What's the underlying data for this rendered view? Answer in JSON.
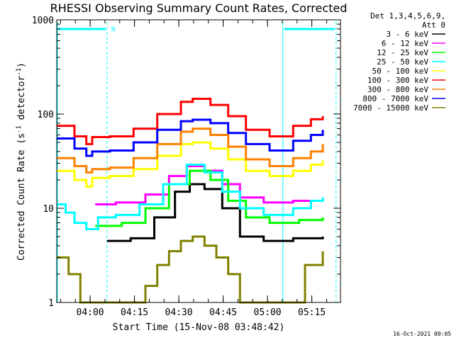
{
  "chart_data": {
    "type": "line",
    "title": "RHESSI Observing Summary Count Rates, Corrected",
    "xlabel": "Start Time (15-Nov-08 03:48:42)",
    "ylabel_main": "Corrected Count Rate (s",
    "ylabel_sup1": "-1",
    "ylabel_mid": " detector",
    "ylabel_sup2": "-1",
    "ylabel_end": ")",
    "yscale": "log",
    "ylim": [
      1,
      1000
    ],
    "xlim_minutes": [
      0,
      96
    ],
    "yticks": [
      {
        "v": 1,
        "label": "1"
      },
      {
        "v": 10,
        "label": "10"
      },
      {
        "v": 100,
        "label": "100"
      },
      {
        "v": 1000,
        "label": "1000"
      }
    ],
    "xticks": [
      {
        "m": 11.3,
        "label": "04:00"
      },
      {
        "m": 26.3,
        "label": "04:15"
      },
      {
        "m": 41.3,
        "label": "04:30"
      },
      {
        "m": 56.3,
        "label": "04:45"
      },
      {
        "m": 71.3,
        "label": "05:00"
      },
      {
        "m": 86.3,
        "label": "05:15"
      }
    ],
    "legend_header": [
      "Det 1,3,4,5,6,9,",
      "Att 0"
    ],
    "legend_placement": "right",
    "night_flag_label": "N",
    "night_bands": [
      [
        0,
        17
      ],
      [
        76.5,
        94.5
      ]
    ],
    "series": [
      {
        "name": "3 - 6 keV",
        "color": "#000000",
        "points": [
          [
            17,
            4.5
          ],
          [
            25,
            4.8
          ],
          [
            33,
            8
          ],
          [
            40,
            15
          ],
          [
            45,
            18
          ],
          [
            50,
            16
          ],
          [
            56,
            10
          ],
          [
            62,
            5
          ],
          [
            70,
            4.5
          ],
          [
            80,
            4.8
          ],
          [
            90,
            5
          ]
        ]
      },
      {
        "name": "6 - 12 keV",
        "color": "#ff00ff",
        "points": [
          [
            13,
            11
          ],
          [
            20,
            11.5
          ],
          [
            30,
            14
          ],
          [
            38,
            22
          ],
          [
            44,
            28
          ],
          [
            50,
            25
          ],
          [
            56,
            18
          ],
          [
            62,
            13
          ],
          [
            70,
            11.5
          ],
          [
            80,
            12
          ],
          [
            90,
            13
          ]
        ]
      },
      {
        "name": "12 - 25 keV",
        "color": "#00ff00",
        "points": [
          [
            13,
            6.5
          ],
          [
            22,
            7
          ],
          [
            30,
            10
          ],
          [
            38,
            18
          ],
          [
            45,
            25
          ],
          [
            52,
            20
          ],
          [
            58,
            12
          ],
          [
            64,
            8
          ],
          [
            72,
            7
          ],
          [
            82,
            7.5
          ],
          [
            90,
            8
          ]
        ]
      },
      {
        "name": "25 - 50 keV",
        "color": "#00ffff",
        "points": [
          [
            0,
            11
          ],
          [
            3,
            9
          ],
          [
            6,
            7
          ],
          [
            10,
            6
          ],
          [
            13,
            6
          ],
          [
            14,
            8
          ],
          [
            20,
            8.5
          ],
          [
            28,
            11
          ],
          [
            36,
            18
          ],
          [
            44,
            29
          ],
          [
            50,
            24
          ],
          [
            56,
            15
          ],
          [
            62,
            10
          ],
          [
            70,
            8.5
          ],
          [
            76,
            8.5
          ],
          [
            80,
            10
          ],
          [
            86,
            12
          ],
          [
            90,
            13
          ]
        ]
      },
      {
        "name": "50 - 100 keV",
        "color": "#ffff00",
        "points": [
          [
            0,
            25
          ],
          [
            6,
            20
          ],
          [
            10,
            17
          ],
          [
            12,
            21
          ],
          [
            18,
            22
          ],
          [
            26,
            26
          ],
          [
            34,
            36
          ],
          [
            42,
            48
          ],
          [
            46,
            50
          ],
          [
            52,
            43
          ],
          [
            58,
            33
          ],
          [
            64,
            25
          ],
          [
            72,
            22
          ],
          [
            77,
            22
          ],
          [
            80,
            25
          ],
          [
            86,
            29
          ],
          [
            90,
            32
          ]
        ]
      },
      {
        "name": "100 - 300 keV",
        "color": "#ff0000",
        "points": [
          [
            0,
            75
          ],
          [
            6,
            58
          ],
          [
            10,
            48
          ],
          [
            12,
            57
          ],
          [
            18,
            58
          ],
          [
            26,
            70
          ],
          [
            34,
            100
          ],
          [
            42,
            135
          ],
          [
            46,
            145
          ],
          [
            52,
            125
          ],
          [
            58,
            95
          ],
          [
            64,
            68
          ],
          [
            72,
            58
          ],
          [
            77,
            58
          ],
          [
            80,
            75
          ],
          [
            86,
            88
          ],
          [
            90,
            95
          ]
        ]
      },
      {
        "name": "300 - 800 keV",
        "color": "#ff8000",
        "points": [
          [
            0,
            34
          ],
          [
            6,
            28
          ],
          [
            10,
            24
          ],
          [
            12,
            26
          ],
          [
            18,
            27
          ],
          [
            26,
            34
          ],
          [
            34,
            48
          ],
          [
            42,
            65
          ],
          [
            46,
            70
          ],
          [
            52,
            60
          ],
          [
            58,
            45
          ],
          [
            64,
            33
          ],
          [
            72,
            28
          ],
          [
            77,
            28
          ],
          [
            80,
            34
          ],
          [
            86,
            40
          ],
          [
            90,
            48
          ]
        ]
      },
      {
        "name": "800 - 7000 keV",
        "color": "#0000ff",
        "points": [
          [
            0,
            55
          ],
          [
            6,
            43
          ],
          [
            10,
            36
          ],
          [
            12,
            40
          ],
          [
            18,
            41
          ],
          [
            26,
            50
          ],
          [
            34,
            68
          ],
          [
            42,
            84
          ],
          [
            46,
            87
          ],
          [
            52,
            80
          ],
          [
            58,
            63
          ],
          [
            64,
            48
          ],
          [
            72,
            41
          ],
          [
            77,
            41
          ],
          [
            80,
            52
          ],
          [
            86,
            60
          ],
          [
            90,
            68
          ]
        ]
      },
      {
        "name": "7000 - 15000 keV",
        "color": "#808000",
        "points": [
          [
            0,
            3
          ],
          [
            4,
            2
          ],
          [
            8,
            1
          ],
          [
            26,
            1
          ],
          [
            30,
            1.5
          ],
          [
            34,
            2.5
          ],
          [
            38,
            3.5
          ],
          [
            42,
            4.5
          ],
          [
            46,
            5
          ],
          [
            50,
            4
          ],
          [
            54,
            3
          ],
          [
            58,
            2
          ],
          [
            62,
            1
          ],
          [
            80,
            1
          ],
          [
            84,
            2.5
          ],
          [
            90,
            3.5
          ]
        ]
      }
    ]
  },
  "timestamp": "16-Oct-2021 00:05"
}
